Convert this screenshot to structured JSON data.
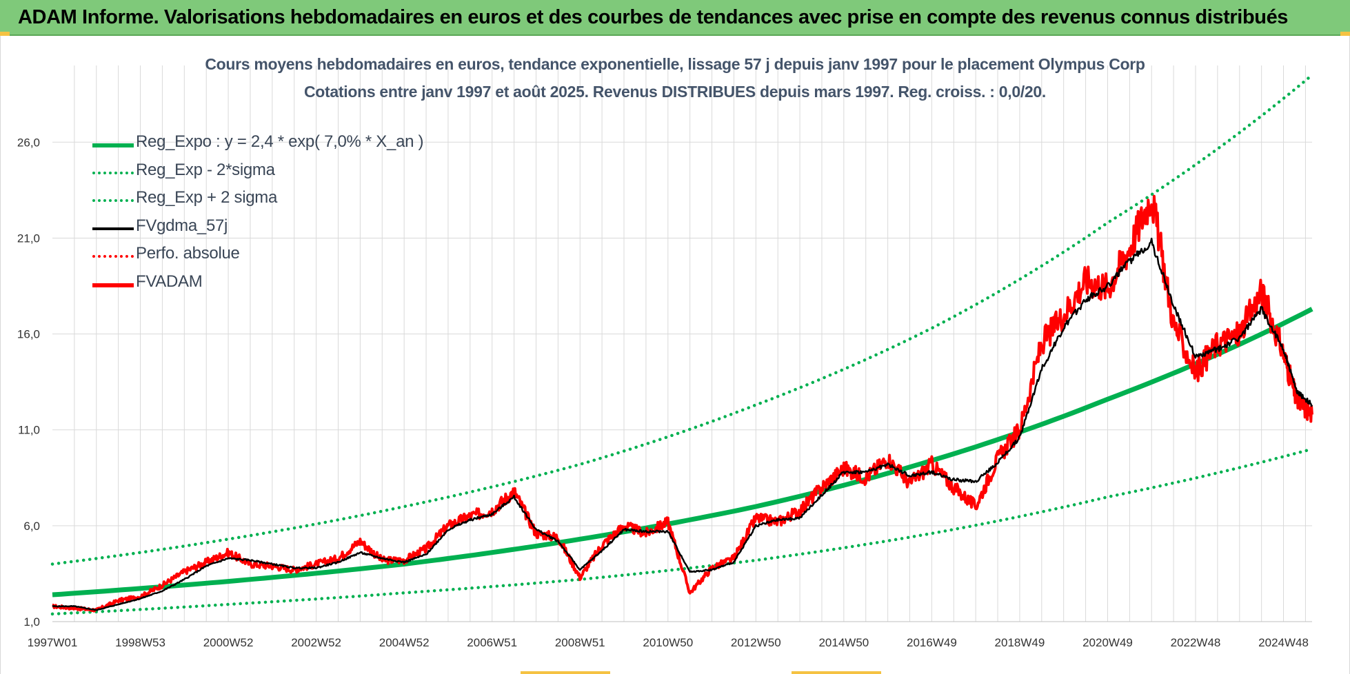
{
  "banner": {
    "title": "ADAM Informe. Valorisations hebdomadaires en euros et des courbes de tendances avec prise en compte des revenus connus distribués"
  },
  "colors": {
    "banner_bg": "#7fc97a",
    "title_text": "#44546a",
    "trend_green": "#00b050",
    "fv_black": "#000000",
    "adam_red": "#ff0000",
    "grid": "#d9d9d9"
  },
  "chart_data": {
    "type": "line",
    "title": "Cours moyens hebdomadaires en euros, tendance exponentielle, lissage 57 j depuis janv 1997 pour le placement Olympus Corp",
    "subtitle": "Cotations entre janv 1997 et août 2025.  Revenus DISTRIBUES depuis mars 1997. Reg. croiss. : 0,0/20.",
    "xlabel": "",
    "ylabel": "",
    "x_tick_labels": [
      "1997W01",
      "1998W53",
      "2000W52",
      "2002W52",
      "2004W52",
      "2006W51",
      "2008W51",
      "2010W50",
      "2012W50",
      "2014W50",
      "2016W49",
      "2018W49",
      "2020W49",
      "2022W48",
      "2024W48"
    ],
    "x_tick_years": [
      1997.0,
      1999.0,
      2001.0,
      2003.0,
      2005.0,
      2007.0,
      2009.0,
      2011.0,
      2013.0,
      2015.0,
      2017.0,
      2019.0,
      2021.0,
      2023.0,
      2025.0
    ],
    "x_range": [
      1997.0,
      2025.65
    ],
    "y_tick_labels": [
      "1,0",
      "6,0",
      "11,0",
      "16,0",
      "21,0",
      "26,0"
    ],
    "y_ticks": [
      1,
      6,
      11,
      16,
      21,
      26
    ],
    "ylim": [
      1,
      30
    ],
    "grid": "on",
    "legend_placement": "top-left",
    "legend": [
      {
        "label": "Reg_Expo : y = 2,4 * exp( 7,0% *  X_an )",
        "style": "solid-thick",
        "color": "#00b050"
      },
      {
        "label": "Reg_Exp - 2*sigma",
        "style": "dotted",
        "color": "#00b050"
      },
      {
        "label": "Reg_Exp + 2 sigma",
        "style": "dotted",
        "color": "#00b050"
      },
      {
        "label": "FVgdma_57j",
        "style": "solid",
        "color": "#000000"
      },
      {
        "label": "Perfo. absolue",
        "style": "dotted",
        "color": "#ff0000"
      },
      {
        "label": "FVADAM",
        "style": "solid-thick",
        "color": "#ff0000"
      }
    ],
    "series": [
      {
        "name": "Reg_Expo : y = 2,4 * exp( 7,0% *  X_an )",
        "x": [
          1997.0,
          2001.0,
          2005.0,
          2009.0,
          2013.0,
          2017.0,
          2021.0,
          2025.65
        ],
        "values": [
          2.4,
          3.1,
          4.0,
          5.3,
          7.0,
          9.4,
          12.6,
          17.3
        ]
      },
      {
        "name": "Reg_Exp - 2*sigma",
        "x": [
          1997.0,
          2001.0,
          2005.0,
          2009.0,
          2013.0,
          2017.0,
          2021.0,
          2025.65
        ],
        "values": [
          1.4,
          1.9,
          2.5,
          3.2,
          4.2,
          5.6,
          7.5,
          10.0
        ]
      },
      {
        "name": "Reg_Exp + 2 sigma",
        "x": [
          1997.0,
          2001.0,
          2005.0,
          2009.0,
          2013.0,
          2017.0,
          2021.0,
          2025.65
        ],
        "values": [
          4.0,
          5.3,
          7.0,
          9.2,
          12.3,
          16.3,
          21.8,
          29.5
        ]
      },
      {
        "name": "FVgdma_57j",
        "x": [
          1997.0,
          1997.5,
          1998.0,
          1998.5,
          1999.0,
          1999.5,
          2000.0,
          2000.5,
          2001.0,
          2001.5,
          2002.0,
          2002.5,
          2003.0,
          2003.5,
          2004.0,
          2004.5,
          2005.0,
          2005.5,
          2006.0,
          2006.5,
          2007.0,
          2007.5,
          2008.0,
          2008.5,
          2009.0,
          2009.5,
          2010.0,
          2010.5,
          2011.0,
          2011.5,
          2012.0,
          2012.5,
          2013.0,
          2013.5,
          2014.0,
          2014.5,
          2015.0,
          2015.5,
          2016.0,
          2016.5,
          2017.0,
          2017.5,
          2018.0,
          2018.5,
          2019.0,
          2019.5,
          2020.0,
          2020.5,
          2021.0,
          2021.5,
          2022.0,
          2022.5,
          2023.0,
          2023.5,
          2024.0,
          2024.5,
          2025.0,
          2025.3,
          2025.65
        ],
        "values": [
          1.8,
          1.8,
          1.6,
          1.9,
          2.2,
          2.6,
          3.2,
          3.9,
          4.3,
          4.2,
          4.0,
          3.8,
          3.8,
          4.1,
          4.6,
          4.3,
          4.1,
          4.5,
          5.8,
          6.3,
          6.6,
          7.5,
          5.8,
          5.2,
          3.7,
          4.7,
          5.8,
          5.7,
          5.7,
          3.6,
          3.7,
          4.1,
          6.0,
          6.3,
          6.4,
          7.6,
          8.8,
          8.8,
          9.2,
          8.6,
          8.8,
          8.4,
          8.3,
          9.3,
          10.6,
          14.2,
          16.3,
          17.8,
          18.5,
          19.8,
          20.8,
          17.5,
          14.8,
          15.2,
          15.8,
          17.3,
          15.2,
          13.0,
          12.3
        ]
      },
      {
        "name": "FVADAM",
        "x": [
          1997.0,
          1997.5,
          1998.0,
          1998.5,
          1999.0,
          1999.5,
          2000.0,
          2000.5,
          2001.0,
          2001.5,
          2002.0,
          2002.5,
          2003.0,
          2003.5,
          2004.0,
          2004.5,
          2005.0,
          2005.5,
          2006.0,
          2006.5,
          2007.0,
          2007.5,
          2008.0,
          2008.5,
          2009.0,
          2009.5,
          2010.0,
          2010.5,
          2011.0,
          2011.5,
          2012.0,
          2012.5,
          2013.0,
          2013.5,
          2014.0,
          2014.5,
          2015.0,
          2015.5,
          2016.0,
          2016.5,
          2017.0,
          2017.5,
          2018.0,
          2018.5,
          2019.0,
          2019.5,
          2020.0,
          2020.5,
          2021.0,
          2021.5,
          2022.0,
          2022.5,
          2023.0,
          2023.5,
          2024.0,
          2024.5,
          2025.0,
          2025.3,
          2025.65
        ],
        "values": [
          1.8,
          1.7,
          1.6,
          2.1,
          2.3,
          2.9,
          3.6,
          4.1,
          4.6,
          4.0,
          3.9,
          3.7,
          4.0,
          4.3,
          5.2,
          4.2,
          4.2,
          4.8,
          6.0,
          6.5,
          6.8,
          7.8,
          5.6,
          5.4,
          3.3,
          5.0,
          6.0,
          5.6,
          6.2,
          2.5,
          3.8,
          4.3,
          6.4,
          6.2,
          6.8,
          8.0,
          9.0,
          8.5,
          9.5,
          8.2,
          9.2,
          8.0,
          7.0,
          9.5,
          11.0,
          15.5,
          17.0,
          18.8,
          18.4,
          20.5,
          23.2,
          16.5,
          14.0,
          15.5,
          16.0,
          18.2,
          15.0,
          12.5,
          11.8
        ]
      }
    ]
  }
}
